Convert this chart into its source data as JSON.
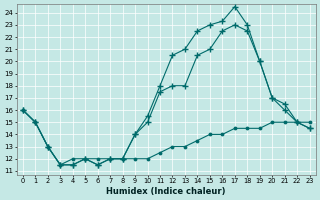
{
  "xlabel": "Humidex (Indice chaleur)",
  "bg_color": "#c5e8e5",
  "line_color": "#006b6b",
  "xlim": [
    -0.5,
    23.5
  ],
  "ylim": [
    10.7,
    24.7
  ],
  "yticks": [
    11,
    12,
    13,
    14,
    15,
    16,
    17,
    18,
    19,
    20,
    21,
    22,
    23,
    24
  ],
  "xticks": [
    0,
    1,
    2,
    3,
    4,
    5,
    6,
    7,
    8,
    9,
    10,
    11,
    12,
    13,
    14,
    15,
    16,
    17,
    18,
    19,
    20,
    21,
    22,
    23
  ],
  "line_top_x": [
    0,
    1,
    2,
    3,
    4,
    5,
    6,
    7,
    8,
    9,
    10,
    11,
    12,
    13,
    14,
    15,
    16,
    17,
    18,
    19,
    20,
    21,
    22,
    23
  ],
  "line_top_y": [
    16,
    15,
    13,
    11.5,
    11.5,
    12,
    11.5,
    12,
    12,
    14,
    15.5,
    18,
    20.5,
    21,
    22.5,
    23,
    23.3,
    24.5,
    23,
    20,
    17,
    16,
    15,
    14.5
  ],
  "line_mid_x": [
    0,
    1,
    2,
    3,
    4,
    5,
    6,
    7,
    8,
    9,
    10,
    11,
    12,
    13,
    14,
    15,
    16,
    17,
    18,
    19,
    20,
    21,
    22,
    23
  ],
  "line_mid_y": [
    16,
    15,
    13,
    11.5,
    11.5,
    12,
    11.5,
    12,
    12,
    14,
    15,
    17.5,
    18,
    18,
    20.5,
    21,
    22.5,
    23,
    22.5,
    20,
    17,
    16.5,
    15,
    14.5
  ],
  "line_bot_x": [
    0,
    1,
    2,
    3,
    4,
    5,
    6,
    7,
    8,
    9,
    10,
    11,
    12,
    13,
    14,
    15,
    16,
    17,
    18,
    19,
    20,
    21,
    22,
    23
  ],
  "line_bot_y": [
    16,
    15,
    13,
    11.5,
    12,
    12,
    12,
    12,
    12,
    12,
    12,
    12.5,
    13,
    13,
    13.5,
    14,
    14,
    14.5,
    14.5,
    14.5,
    15,
    15,
    15,
    15
  ]
}
